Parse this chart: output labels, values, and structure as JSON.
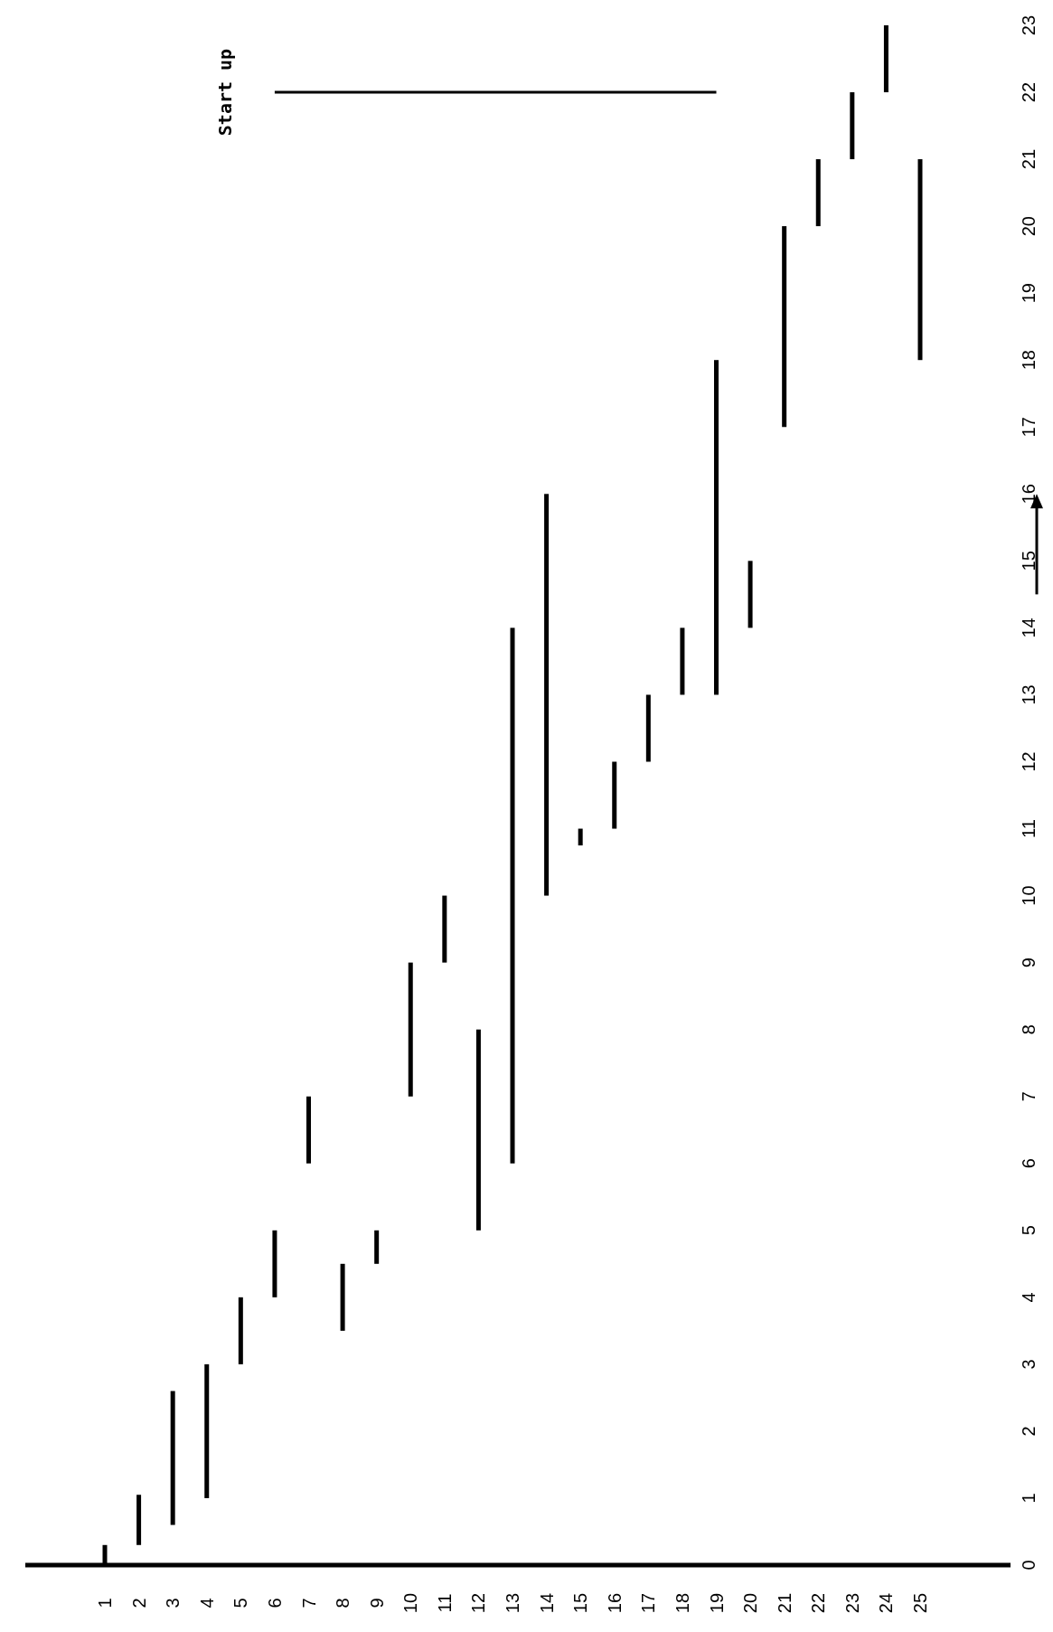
{
  "chart_data": {
    "type": "bar",
    "categories": [
      "1",
      "2",
      "3",
      "4",
      "5",
      "6",
      "7",
      "8",
      "9",
      "10",
      "11",
      "12",
      "13",
      "14",
      "15",
      "16",
      "17",
      "18",
      "19",
      "20",
      "21",
      "22",
      "23",
      "24",
      "25"
    ],
    "base": [
      0,
      0.3,
      0.6,
      1,
      3,
      4,
      6,
      3.5,
      4.5,
      7,
      9,
      5,
      6,
      10,
      10.75,
      11,
      12,
      13,
      13,
      14,
      17,
      20,
      21,
      22,
      18
    ],
    "values": [
      0.3,
      0.75,
      2,
      2,
      1,
      1,
      1,
      1,
      0.5,
      2,
      1,
      3,
      8,
      6,
      0.25,
      1,
      1,
      1,
      5,
      1,
      3,
      1,
      1,
      1,
      3
    ],
    "color": "#000000",
    "ylim": [
      0,
      23
    ],
    "yticks": [
      0,
      1,
      2,
      3,
      4,
      5,
      6,
      7,
      8,
      9,
      10,
      11,
      12,
      13,
      14,
      15,
      16,
      17,
      18,
      19,
      20,
      21,
      22,
      23
    ],
    "ref_lines": [
      {
        "axis": "y",
        "value": 22,
        "label": "Start up"
      }
    ]
  }
}
